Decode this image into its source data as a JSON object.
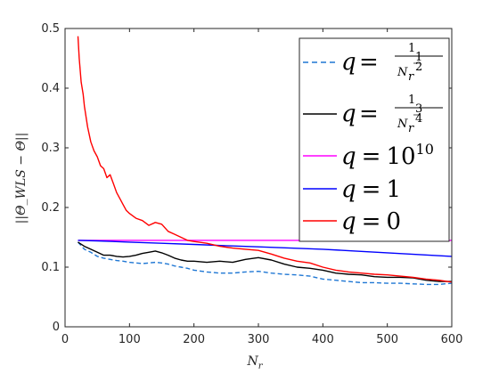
{
  "chart_data": {
    "type": "line",
    "xlabel": "N",
    "xlabel_sub": "r",
    "ylabel": "||Θ_WLS − Θ||",
    "xlim": [
      0,
      600
    ],
    "ylim": [
      0,
      0.5
    ],
    "xticks": [
      0,
      100,
      200,
      300,
      400,
      500,
      600
    ],
    "yticks": [
      0,
      0.1,
      0.2,
      0.3,
      0.4,
      0.5
    ],
    "xtick_labels": [
      "0",
      "100",
      "200",
      "300",
      "400",
      "500",
      "600"
    ],
    "ytick_labels": [
      "0",
      "0.1",
      "0.2",
      "0.3",
      "0.4",
      "0.5"
    ],
    "grid": false,
    "legend_position": "top-right",
    "series": [
      {
        "name": "q = 1/N_r^(1/2)",
        "legend": {
          "lhs": "q",
          "eq": "=",
          "num": "1",
          "den": "N",
          "sub": "r",
          "exp_num": "1",
          "exp_den": "2"
        },
        "color": "#1f77d4",
        "style": "dashed",
        "x": [
          20,
          30,
          40,
          50,
          60,
          70,
          80,
          90,
          100,
          110,
          120,
          130,
          140,
          150,
          160,
          170,
          180,
          190,
          200,
          220,
          240,
          260,
          280,
          300,
          320,
          340,
          360,
          380,
          400,
          420,
          440,
          460,
          480,
          500,
          520,
          540,
          560,
          580,
          600
        ],
        "y": [
          0.142,
          0.13,
          0.125,
          0.118,
          0.115,
          0.113,
          0.111,
          0.11,
          0.108,
          0.107,
          0.106,
          0.107,
          0.108,
          0.107,
          0.105,
          0.102,
          0.1,
          0.098,
          0.095,
          0.092,
          0.09,
          0.09,
          0.092,
          0.093,
          0.09,
          0.088,
          0.087,
          0.085,
          0.08,
          0.078,
          0.076,
          0.074,
          0.074,
          0.073,
          0.073,
          0.072,
          0.071,
          0.071,
          0.073
        ]
      },
      {
        "name": "q = 1/N_r^(3/4)",
        "legend": {
          "lhs": "q",
          "eq": "=",
          "num": "1",
          "den": "N",
          "sub": "r",
          "exp_num": "3",
          "exp_den": "4"
        },
        "color": "#000000",
        "style": "solid",
        "x": [
          20,
          30,
          40,
          50,
          60,
          70,
          80,
          90,
          100,
          110,
          120,
          130,
          140,
          150,
          160,
          170,
          180,
          190,
          200,
          220,
          240,
          260,
          280,
          300,
          320,
          340,
          360,
          380,
          400,
          420,
          440,
          460,
          480,
          500,
          520,
          540,
          560,
          580,
          600
        ],
        "y": [
          0.142,
          0.135,
          0.13,
          0.125,
          0.12,
          0.12,
          0.118,
          0.117,
          0.118,
          0.12,
          0.123,
          0.125,
          0.127,
          0.124,
          0.12,
          0.115,
          0.112,
          0.11,
          0.11,
          0.108,
          0.11,
          0.108,
          0.113,
          0.116,
          0.112,
          0.105,
          0.1,
          0.098,
          0.095,
          0.09,
          0.088,
          0.087,
          0.084,
          0.083,
          0.083,
          0.082,
          0.078,
          0.076,
          0.076
        ]
      },
      {
        "name": "q = 10^10",
        "legend": {
          "lhs": "q",
          "eq": "=",
          "base": "10",
          "exp": "10"
        },
        "color": "#ff00ff",
        "style": "solid",
        "x": [
          20,
          100,
          200,
          300,
          400,
          500,
          600
        ],
        "y": [
          0.145,
          0.145,
          0.145,
          0.145,
          0.145,
          0.145,
          0.145
        ]
      },
      {
        "name": "q = 1",
        "legend": {
          "lhs": "q",
          "eq": "=",
          "value": "1"
        },
        "color": "#0000ff",
        "style": "solid",
        "x": [
          20,
          50,
          100,
          150,
          200,
          250,
          300,
          350,
          400,
          450,
          500,
          550,
          600
        ],
        "y": [
          0.145,
          0.144,
          0.142,
          0.14,
          0.138,
          0.136,
          0.134,
          0.132,
          0.13,
          0.127,
          0.124,
          0.121,
          0.118
        ]
      },
      {
        "name": "q = 0",
        "legend": {
          "lhs": "q",
          "eq": "=",
          "value": "0"
        },
        "color": "#ff0000",
        "style": "solid",
        "x": [
          20,
          22,
          25,
          28,
          30,
          35,
          40,
          45,
          50,
          55,
          60,
          65,
          70,
          75,
          80,
          85,
          90,
          95,
          100,
          110,
          120,
          130,
          140,
          150,
          160,
          170,
          180,
          190,
          200,
          220,
          240,
          260,
          280,
          300,
          320,
          340,
          360,
          380,
          400,
          420,
          440,
          460,
          480,
          500,
          520,
          540,
          560,
          580,
          600
        ],
        "y": [
          0.487,
          0.45,
          0.41,
          0.39,
          0.37,
          0.335,
          0.31,
          0.295,
          0.285,
          0.27,
          0.265,
          0.25,
          0.255,
          0.24,
          0.225,
          0.215,
          0.205,
          0.195,
          0.19,
          0.182,
          0.178,
          0.17,
          0.175,
          0.172,
          0.16,
          0.155,
          0.15,
          0.145,
          0.143,
          0.14,
          0.135,
          0.132,
          0.13,
          0.128,
          0.122,
          0.115,
          0.11,
          0.107,
          0.1,
          0.095,
          0.092,
          0.09,
          0.088,
          0.087,
          0.085,
          0.083,
          0.08,
          0.078,
          0.075
        ]
      }
    ]
  }
}
